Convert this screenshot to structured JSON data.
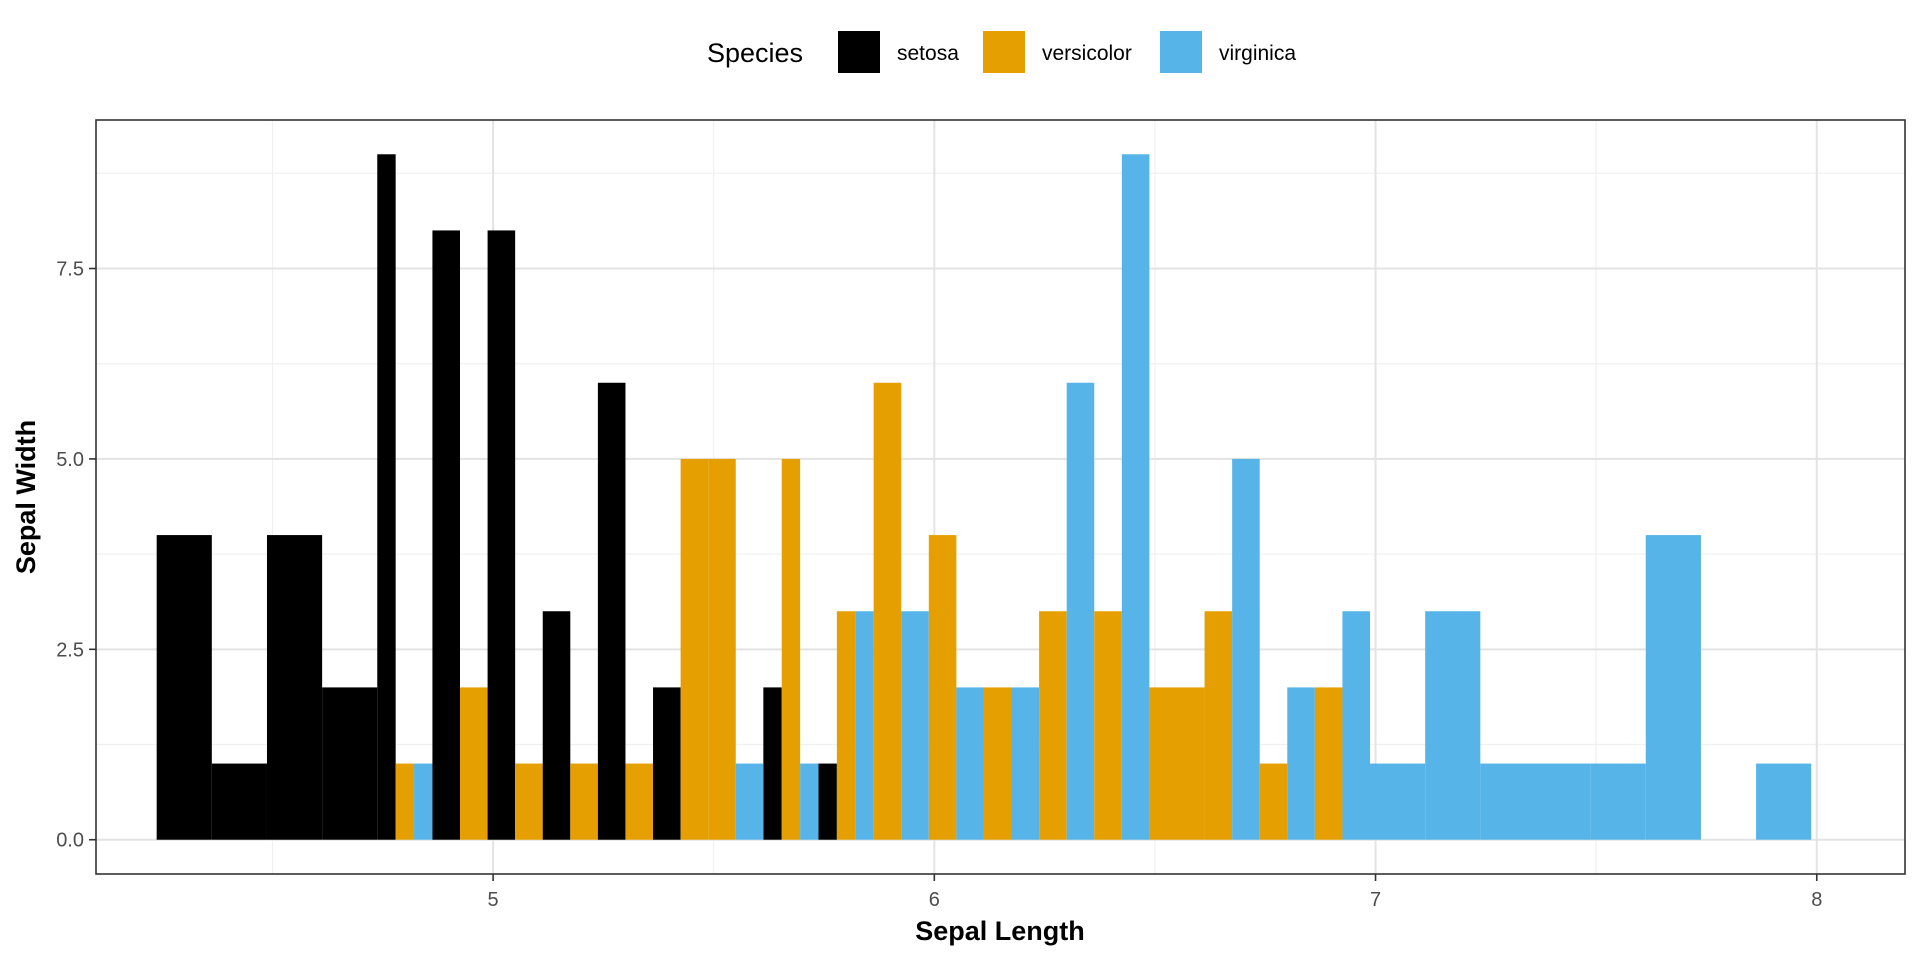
{
  "chart_data": {
    "type": "bar",
    "title": "",
    "xlabel": "Sepal Length",
    "ylabel": "Sepal Width",
    "xlim": [
      4.1,
      8.2
    ],
    "ylim": [
      -0.45,
      9.45
    ],
    "x_ticks": [
      5,
      6,
      7,
      8
    ],
    "x_tick_labels": [
      "5",
      "6",
      "7",
      "8"
    ],
    "x_minor_ticks": [
      4.5,
      5.5,
      6.5,
      7.5
    ],
    "y_ticks": [
      0,
      2.5,
      5,
      7.5
    ],
    "y_tick_labels": [
      "0.0",
      "2.5",
      "5.0",
      "7.5"
    ],
    "y_minor_ticks": [
      1.25,
      3.75,
      6.25,
      8.75
    ],
    "grid": true,
    "bar_group_width": 0.125,
    "legend": {
      "title": "Species",
      "position": "top",
      "entries": [
        "setosa",
        "versicolor",
        "virginica"
      ]
    },
    "series": [
      {
        "name": "setosa",
        "color": "#000000",
        "points": [
          {
            "x": 4.3,
            "y": 4
          },
          {
            "x": 4.425,
            "y": 1
          },
          {
            "x": 4.55,
            "y": 4
          },
          {
            "x": 4.675,
            "y": 2
          },
          {
            "x": 4.8,
            "y": 9
          },
          {
            "x": 4.925,
            "y": 8
          },
          {
            "x": 5.05,
            "y": 8
          },
          {
            "x": 5.175,
            "y": 3
          },
          {
            "x": 5.3,
            "y": 6
          },
          {
            "x": 5.425,
            "y": 2
          },
          {
            "x": 5.675,
            "y": 2
          },
          {
            "x": 5.8,
            "y": 1
          }
        ]
      },
      {
        "name": "versicolor",
        "color": "#E69F00",
        "points": [
          {
            "x": 4.8,
            "y": 1
          },
          {
            "x": 4.925,
            "y": 2
          },
          {
            "x": 5.05,
            "y": 1
          },
          {
            "x": 5.175,
            "y": 1
          },
          {
            "x": 5.3,
            "y": 1
          },
          {
            "x": 5.425,
            "y": 5
          },
          {
            "x": 5.55,
            "y": 5
          },
          {
            "x": 5.675,
            "y": 5
          },
          {
            "x": 5.8,
            "y": 3
          },
          {
            "x": 5.925,
            "y": 6
          },
          {
            "x": 6.05,
            "y": 4
          },
          {
            "x": 6.175,
            "y": 2
          },
          {
            "x": 6.3,
            "y": 3
          },
          {
            "x": 6.425,
            "y": 3
          },
          {
            "x": 6.55,
            "y": 2
          },
          {
            "x": 6.675,
            "y": 3
          },
          {
            "x": 6.8,
            "y": 1
          },
          {
            "x": 6.925,
            "y": 2
          }
        ]
      },
      {
        "name": "virginica",
        "color": "#56B4E9",
        "points": [
          {
            "x": 4.8,
            "y": 1
          },
          {
            "x": 5.55,
            "y": 1
          },
          {
            "x": 5.675,
            "y": 1
          },
          {
            "x": 5.8,
            "y": 3
          },
          {
            "x": 5.925,
            "y": 3
          },
          {
            "x": 6.05,
            "y": 2
          },
          {
            "x": 6.175,
            "y": 2
          },
          {
            "x": 6.3,
            "y": 6
          },
          {
            "x": 6.425,
            "y": 9
          },
          {
            "x": 6.675,
            "y": 5
          },
          {
            "x": 6.8,
            "y": 2
          },
          {
            "x": 6.925,
            "y": 3
          },
          {
            "x": 7.05,
            "y": 1
          },
          {
            "x": 7.175,
            "y": 3
          },
          {
            "x": 7.3,
            "y": 1
          },
          {
            "x": 7.425,
            "y": 1
          },
          {
            "x": 7.55,
            "y": 1
          },
          {
            "x": 7.675,
            "y": 4
          },
          {
            "x": 7.925,
            "y": 1
          }
        ]
      }
    ]
  }
}
